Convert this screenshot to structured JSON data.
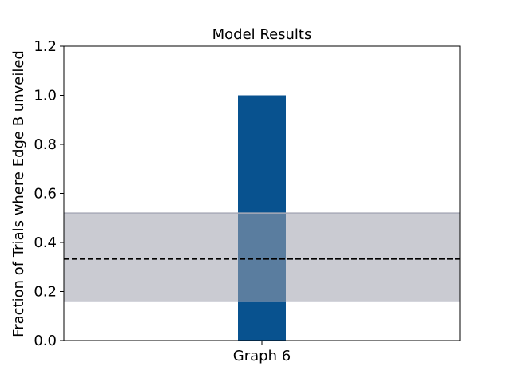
{
  "chart_data": {
    "type": "bar",
    "title": "Model Results",
    "xlabel": "",
    "ylabel": "Fraction of Trials where Edge B unveiled",
    "categories": [
      "Graph 6"
    ],
    "values": [
      1.0
    ],
    "ylim": [
      0,
      1.2
    ],
    "yticks": [
      0.0,
      0.2,
      0.4,
      0.6,
      0.8,
      1.0,
      1.2
    ],
    "ytick_labels": [
      "0.0",
      "0.2",
      "0.4",
      "0.6",
      "0.8",
      "1.0",
      "1.2"
    ],
    "grid": false,
    "reference_line": {
      "value": 0.333,
      "style": "dashed",
      "color": "#000000"
    },
    "reference_band": {
      "low": 0.16,
      "high": 0.52,
      "color": "#9fa1ad"
    },
    "bar_color": "#08528f"
  }
}
